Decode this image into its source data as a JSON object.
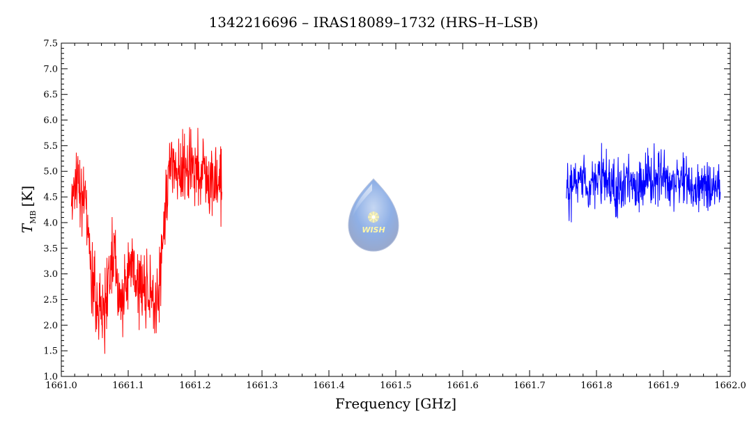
{
  "chart_data": {
    "type": "line",
    "title": "1342216696 – IRAS18089–1732 (HRS–H–LSB)",
    "xlabel": "Frequency [GHz]",
    "ylabel": {
      "symbol": "T",
      "subscript": "MB",
      "unit": "[K]"
    },
    "xlim": [
      1661.0,
      1662.0
    ],
    "ylim": [
      1.0,
      7.5
    ],
    "xticks": [
      "1661.0",
      "1661.1",
      "1661.2",
      "1661.3",
      "1661.4",
      "1661.5",
      "1661.6",
      "1661.7",
      "1661.8",
      "1661.9",
      "1662.0"
    ],
    "yticks": [
      "1.0",
      "1.5",
      "2.0",
      "2.5",
      "3.0",
      "3.5",
      "4.0",
      "4.5",
      "5.0",
      "5.5",
      "6.0",
      "6.5",
      "7.0",
      "7.5"
    ],
    "grid": false,
    "logo_text": "WISH",
    "series": [
      {
        "color": "#ff0000",
        "x": [
          1661.015,
          1661.02,
          1661.03,
          1661.035,
          1661.04,
          1661.045,
          1661.05,
          1661.055,
          1661.06,
          1661.065,
          1661.07,
          1661.075,
          1661.08,
          1661.085,
          1661.09,
          1661.095,
          1661.1,
          1661.105,
          1661.11,
          1661.115,
          1661.12,
          1661.125,
          1661.13,
          1661.135,
          1661.14,
          1661.145,
          1661.15,
          1661.155,
          1661.16,
          1661.165,
          1661.17,
          1661.175,
          1661.18,
          1661.185,
          1661.19,
          1661.195,
          1661.2,
          1661.205,
          1661.21,
          1661.215,
          1661.22,
          1661.225,
          1661.23,
          1661.235,
          1661.24
        ],
        "y": [
          4.5,
          4.9,
          4.6,
          4.3,
          3.9,
          2.9,
          2.7,
          2.5,
          2.4,
          2.3,
          2.8,
          3.2,
          3.5,
          2.7,
          2.4,
          2.7,
          3.2,
          3.3,
          3.0,
          2.9,
          2.8,
          2.6,
          2.6,
          2.5,
          2.4,
          2.5,
          3.3,
          4.3,
          4.9,
          5.1,
          5.2,
          5.1,
          5.0,
          5.1,
          5.0,
          5.2,
          5.0,
          4.9,
          5.1,
          5.0,
          4.7,
          4.8,
          4.9,
          4.7,
          4.6
        ]
      },
      {
        "color": "#0000ff",
        "x": [
          1661.755,
          1661.76,
          1661.77,
          1661.78,
          1661.79,
          1661.8,
          1661.81,
          1661.82,
          1661.83,
          1661.84,
          1661.85,
          1661.86,
          1661.87,
          1661.88,
          1661.89,
          1661.9,
          1661.91,
          1661.92,
          1661.93,
          1661.94,
          1661.95,
          1661.96,
          1661.97,
          1661.98,
          1661.985
        ],
        "y": [
          4.8,
          4.6,
          4.8,
          4.9,
          4.7,
          4.8,
          4.9,
          4.8,
          4.6,
          4.8,
          4.9,
          4.7,
          4.8,
          4.9,
          4.8,
          4.9,
          4.7,
          4.8,
          4.9,
          4.6,
          4.7,
          4.8,
          4.7,
          4.8,
          4.6
        ]
      }
    ]
  }
}
